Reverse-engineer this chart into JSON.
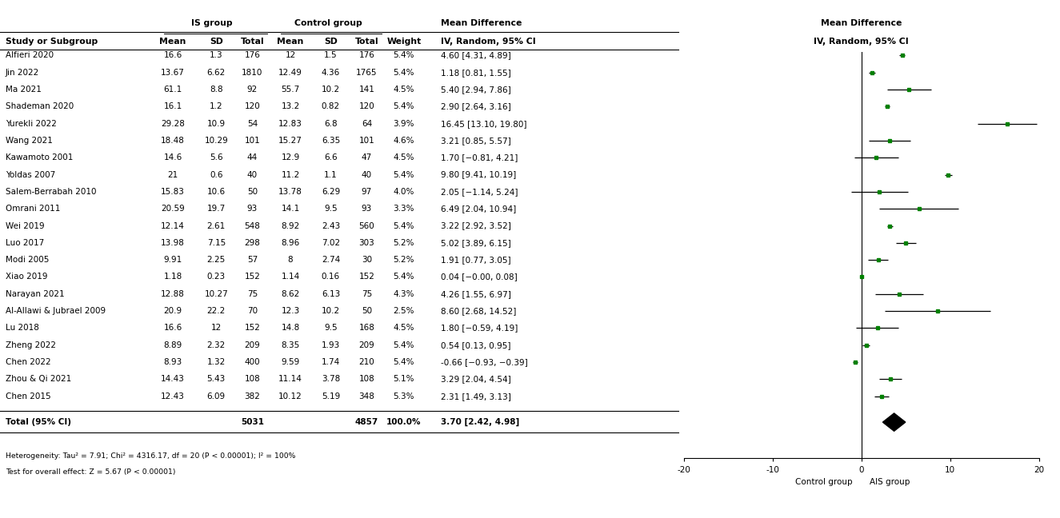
{
  "studies": [
    {
      "name": "Alfieri 2020",
      "is_mean": "16.6",
      "is_sd": "1.3",
      "is_n": "176",
      "ctrl_mean": "12",
      "ctrl_sd": "1.5",
      "ctrl_n": "176",
      "weight": "5.4%",
      "md": 4.6,
      "ci_lo": 4.31,
      "ci_hi": 4.89,
      "md_str": "4.60 [4.31, 4.89]"
    },
    {
      "name": "Jin 2022",
      "is_mean": "13.67",
      "is_sd": "6.62",
      "is_n": "1810",
      "ctrl_mean": "12.49",
      "ctrl_sd": "4.36",
      "ctrl_n": "1765",
      "weight": "5.4%",
      "md": 1.18,
      "ci_lo": 0.81,
      "ci_hi": 1.55,
      "md_str": "1.18 [0.81, 1.55]"
    },
    {
      "name": "Ma 2021",
      "is_mean": "61.1",
      "is_sd": "8.8",
      "is_n": "92",
      "ctrl_mean": "55.7",
      "ctrl_sd": "10.2",
      "ctrl_n": "141",
      "weight": "4.5%",
      "md": 5.4,
      "ci_lo": 2.94,
      "ci_hi": 7.86,
      "md_str": "5.40 [2.94, 7.86]"
    },
    {
      "name": "Shademan 2020",
      "is_mean": "16.1",
      "is_sd": "1.2",
      "is_n": "120",
      "ctrl_mean": "13.2",
      "ctrl_sd": "0.82",
      "ctrl_n": "120",
      "weight": "5.4%",
      "md": 2.9,
      "ci_lo": 2.64,
      "ci_hi": 3.16,
      "md_str": "2.90 [2.64, 3.16]"
    },
    {
      "name": "Yurekli 2022",
      "is_mean": "29.28",
      "is_sd": "10.9",
      "is_n": "54",
      "ctrl_mean": "12.83",
      "ctrl_sd": "6.8",
      "ctrl_n": "64",
      "weight": "3.9%",
      "md": 16.45,
      "ci_lo": 13.1,
      "ci_hi": 19.8,
      "md_str": "16.45 [13.10, 19.80]"
    },
    {
      "name": "Wang 2021",
      "is_mean": "18.48",
      "is_sd": "10.29",
      "is_n": "101",
      "ctrl_mean": "15.27",
      "ctrl_sd": "6.35",
      "ctrl_n": "101",
      "weight": "4.6%",
      "md": 3.21,
      "ci_lo": 0.85,
      "ci_hi": 5.57,
      "md_str": "3.21 [0.85, 5.57]"
    },
    {
      "name": "Kawamoto 2001",
      "is_mean": "14.6",
      "is_sd": "5.6",
      "is_n": "44",
      "ctrl_mean": "12.9",
      "ctrl_sd": "6.6",
      "ctrl_n": "47",
      "weight": "4.5%",
      "md": 1.7,
      "ci_lo": -0.81,
      "ci_hi": 4.21,
      "md_str": "1.70 [−0.81, 4.21]"
    },
    {
      "name": "Yoldas 2007",
      "is_mean": "21",
      "is_sd": "0.6",
      "is_n": "40",
      "ctrl_mean": "11.2",
      "ctrl_sd": "1.1",
      "ctrl_n": "40",
      "weight": "5.4%",
      "md": 9.8,
      "ci_lo": 9.41,
      "ci_hi": 10.19,
      "md_str": "9.80 [9.41, 10.19]"
    },
    {
      "name": "Salem-Berrabah 2010",
      "is_mean": "15.83",
      "is_sd": "10.6",
      "is_n": "50",
      "ctrl_mean": "13.78",
      "ctrl_sd": "6.29",
      "ctrl_n": "97",
      "weight": "4.0%",
      "md": 2.05,
      "ci_lo": -1.14,
      "ci_hi": 5.24,
      "md_str": "2.05 [−1.14, 5.24]"
    },
    {
      "name": "Omrani 2011",
      "is_mean": "20.59",
      "is_sd": "19.7",
      "is_n": "93",
      "ctrl_mean": "14.1",
      "ctrl_sd": "9.5",
      "ctrl_n": "93",
      "weight": "3.3%",
      "md": 6.49,
      "ci_lo": 2.04,
      "ci_hi": 10.94,
      "md_str": "6.49 [2.04, 10.94]"
    },
    {
      "name": "Wei 2019",
      "is_mean": "12.14",
      "is_sd": "2.61",
      "is_n": "548",
      "ctrl_mean": "8.92",
      "ctrl_sd": "2.43",
      "ctrl_n": "560",
      "weight": "5.4%",
      "md": 3.22,
      "ci_lo": 2.92,
      "ci_hi": 3.52,
      "md_str": "3.22 [2.92, 3.52]"
    },
    {
      "name": "Luo 2017",
      "is_mean": "13.98",
      "is_sd": "7.15",
      "is_n": "298",
      "ctrl_mean": "8.96",
      "ctrl_sd": "7.02",
      "ctrl_n": "303",
      "weight": "5.2%",
      "md": 5.02,
      "ci_lo": 3.89,
      "ci_hi": 6.15,
      "md_str": "5.02 [3.89, 6.15]"
    },
    {
      "name": "Modi 2005",
      "is_mean": "9.91",
      "is_sd": "2.25",
      "is_n": "57",
      "ctrl_mean": "8",
      "ctrl_sd": "2.74",
      "ctrl_n": "30",
      "weight": "5.2%",
      "md": 1.91,
      "ci_lo": 0.77,
      "ci_hi": 3.05,
      "md_str": "1.91 [0.77, 3.05]"
    },
    {
      "name": "Xiao 2019",
      "is_mean": "1.18",
      "is_sd": "0.23",
      "is_n": "152",
      "ctrl_mean": "1.14",
      "ctrl_sd": "0.16",
      "ctrl_n": "152",
      "weight": "5.4%",
      "md": 0.04,
      "ci_lo": -0.0,
      "ci_hi": 0.08,
      "md_str": "0.04 [−0.00, 0.08]"
    },
    {
      "name": "Narayan 2021",
      "is_mean": "12.88",
      "is_sd": "10.27",
      "is_n": "75",
      "ctrl_mean": "8.62",
      "ctrl_sd": "6.13",
      "ctrl_n": "75",
      "weight": "4.3%",
      "md": 4.26,
      "ci_lo": 1.55,
      "ci_hi": 6.97,
      "md_str": "4.26 [1.55, 6.97]"
    },
    {
      "name": "Al-Allawi & Jubrael 2009",
      "is_mean": "20.9",
      "is_sd": "22.2",
      "is_n": "70",
      "ctrl_mean": "12.3",
      "ctrl_sd": "10.2",
      "ctrl_n": "50",
      "weight": "2.5%",
      "md": 8.6,
      "ci_lo": 2.68,
      "ci_hi": 14.52,
      "md_str": "8.60 [2.68, 14.52]"
    },
    {
      "name": "Lu 2018",
      "is_mean": "16.6",
      "is_sd": "12",
      "is_n": "152",
      "ctrl_mean": "14.8",
      "ctrl_sd": "9.5",
      "ctrl_n": "168",
      "weight": "4.5%",
      "md": 1.8,
      "ci_lo": -0.59,
      "ci_hi": 4.19,
      "md_str": "1.80 [−0.59, 4.19]"
    },
    {
      "name": "Zheng 2022",
      "is_mean": "8.89",
      "is_sd": "2.32",
      "is_n": "209",
      "ctrl_mean": "8.35",
      "ctrl_sd": "1.93",
      "ctrl_n": "209",
      "weight": "5.4%",
      "md": 0.54,
      "ci_lo": 0.13,
      "ci_hi": 0.95,
      "md_str": "0.54 [0.13, 0.95]"
    },
    {
      "name": "Chen 2022",
      "is_mean": "8.93",
      "is_sd": "1.32",
      "is_n": "400",
      "ctrl_mean": "9.59",
      "ctrl_sd": "1.74",
      "ctrl_n": "210",
      "weight": "5.4%",
      "md": -0.66,
      "ci_lo": -0.93,
      "ci_hi": -0.39,
      "md_str": "-0.66 [−0.93, −0.39]"
    },
    {
      "name": "Zhou & Qi 2021",
      "is_mean": "14.43",
      "is_sd": "5.43",
      "is_n": "108",
      "ctrl_mean": "11.14",
      "ctrl_sd": "3.78",
      "ctrl_n": "108",
      "weight": "5.1%",
      "md": 3.29,
      "ci_lo": 2.04,
      "ci_hi": 4.54,
      "md_str": "3.29 [2.04, 4.54]"
    },
    {
      "name": "Chen 2015",
      "is_mean": "12.43",
      "is_sd": "6.09",
      "is_n": "382",
      "ctrl_mean": "10.12",
      "ctrl_sd": "5.19",
      "ctrl_n": "348",
      "weight": "5.3%",
      "md": 2.31,
      "ci_lo": 1.49,
      "ci_hi": 3.13,
      "md_str": "2.31 [1.49, 3.13]"
    }
  ],
  "total": {
    "is_n": "5031",
    "ctrl_n": "4857",
    "weight": "100.0%",
    "md": 3.7,
    "ci_lo": 2.42,
    "ci_hi": 4.98,
    "md_str": "3.70 [2.42, 4.98]"
  },
  "heterogeneity_text": "Heterogeneity: Tau² = 7.91; Chi² = 4316.17, df = 20 (P < 0.00001); I² = 100%",
  "overall_effect_text": "Test for overall effect: Z = 5.67 (P < 0.00001)",
  "xmin": -20,
  "xmax": 20,
  "xticks": [
    -20,
    -10,
    0,
    10,
    20
  ],
  "xlabel_left": "Control group",
  "xlabel_right": "AIS group",
  "green_color": "#008000",
  "black_color": "#000000",
  "fontsize": 7.5,
  "bold_fontsize": 7.8
}
